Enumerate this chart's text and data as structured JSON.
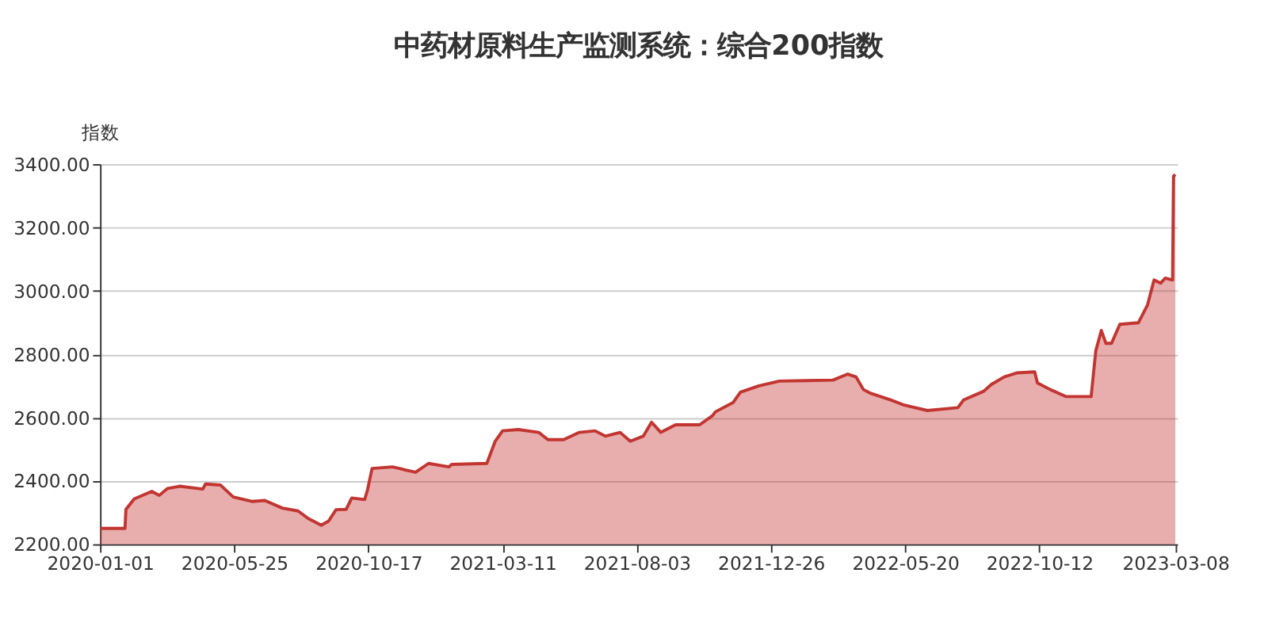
{
  "chart_data": {
    "type": "area",
    "title": "中药材原料生产监测系统：综合200指数",
    "ylabel": "指数",
    "grid": "y",
    "xlim": [
      "2020-01-01",
      "2023-03-10"
    ],
    "xticks": [
      "2020-01-01",
      "2020-05-25",
      "2020-10-17",
      "2021-03-11",
      "2021-08-03",
      "2021-12-26",
      "2022-05-20",
      "2022-10-12",
      "2023-03-08"
    ],
    "ylim": [
      2200,
      3400
    ],
    "yticks": [
      {
        "value": 2200,
        "label": "2200.00"
      },
      {
        "value": 2400,
        "label": "2400.00"
      },
      {
        "value": 2600,
        "label": "2600.00"
      },
      {
        "value": 2800,
        "label": "2800.00"
      },
      {
        "value": 3000,
        "label": "3000.00"
      },
      {
        "value": 3200,
        "label": "3200.00"
      },
      {
        "value": 3400,
        "label": "3400.00"
      }
    ],
    "series": [
      {
        "color": "#c23531",
        "x": [
          "2020-01-01",
          "2020-01-28",
          "2020-01-29",
          "2020-02-07",
          "2020-02-26",
          "2020-03-05",
          "2020-03-14",
          "2020-03-27",
          "2020-04-21",
          "2020-04-24",
          "2020-05-10",
          "2020-05-24",
          "2020-06-13",
          "2020-06-27",
          "2020-07-16",
          "2020-08-02",
          "2020-08-13",
          "2020-08-27",
          "2020-09-04",
          "2020-09-12",
          "2020-09-23",
          "2020-09-29",
          "2020-10-13",
          "2020-10-16",
          "2020-10-21",
          "2020-11-12",
          "2020-12-07",
          "2020-12-21",
          "2021-01-12",
          "2021-01-15",
          "2021-02-22",
          "2021-03-03",
          "2021-03-11",
          "2021-03-28",
          "2021-04-19",
          "2021-04-29",
          "2021-05-16",
          "2021-06-02",
          "2021-06-19",
          "2021-06-30",
          "2021-07-16",
          "2021-07-27",
          "2021-08-10",
          "2021-08-19",
          "2021-08-29",
          "2021-09-14",
          "2021-10-10",
          "2021-10-24",
          "2021-10-27",
          "2021-11-15",
          "2021-11-23",
          "2021-12-13",
          "2022-01-04",
          "2022-03-03",
          "2022-03-19",
          "2022-03-28",
          "2022-04-05",
          "2022-04-13",
          "2022-05-05",
          "2022-05-19",
          "2022-06-13",
          "2022-07-16",
          "2022-07-22",
          "2022-08-13",
          "2022-08-21",
          "2022-09-04",
          "2022-09-18",
          "2022-10-07",
          "2022-10-10",
          "2022-10-24",
          "2022-11-10",
          "2022-12-07",
          "2022-12-12",
          "2022-12-18",
          "2022-12-23",
          "2022-12-29",
          "2023-01-07",
          "2023-01-27",
          "2023-02-06",
          "2023-02-13",
          "2023-02-20",
          "2023-02-25",
          "2023-03-05",
          "2023-03-06",
          "2023-03-08"
        ],
        "values": [
          2250,
          2250,
          2310,
          2343,
          2367,
          2354,
          2376,
          2383,
          2374,
          2390,
          2387,
          2349,
          2335,
          2338,
          2314,
          2305,
          2281,
          2260,
          2273,
          2309,
          2310,
          2346,
          2341,
          2371,
          2439,
          2444,
          2427,
          2455,
          2444,
          2452,
          2455,
          2525,
          2558,
          2562,
          2553,
          2530,
          2530,
          2553,
          2558,
          2541,
          2553,
          2525,
          2541,
          2585,
          2553,
          2577,
          2577,
          2606,
          2618,
          2647,
          2680,
          2700,
          2715,
          2718,
          2737,
          2728,
          2688,
          2676,
          2655,
          2639,
          2622,
          2631,
          2655,
          2683,
          2704,
          2728,
          2741,
          2744,
          2709,
          2688,
          2666,
          2666,
          2810,
          2875,
          2834,
          2834,
          2894,
          2899,
          2956,
          3034,
          3024,
          3040,
          3034,
          3362,
          3367
        ]
      }
    ]
  }
}
